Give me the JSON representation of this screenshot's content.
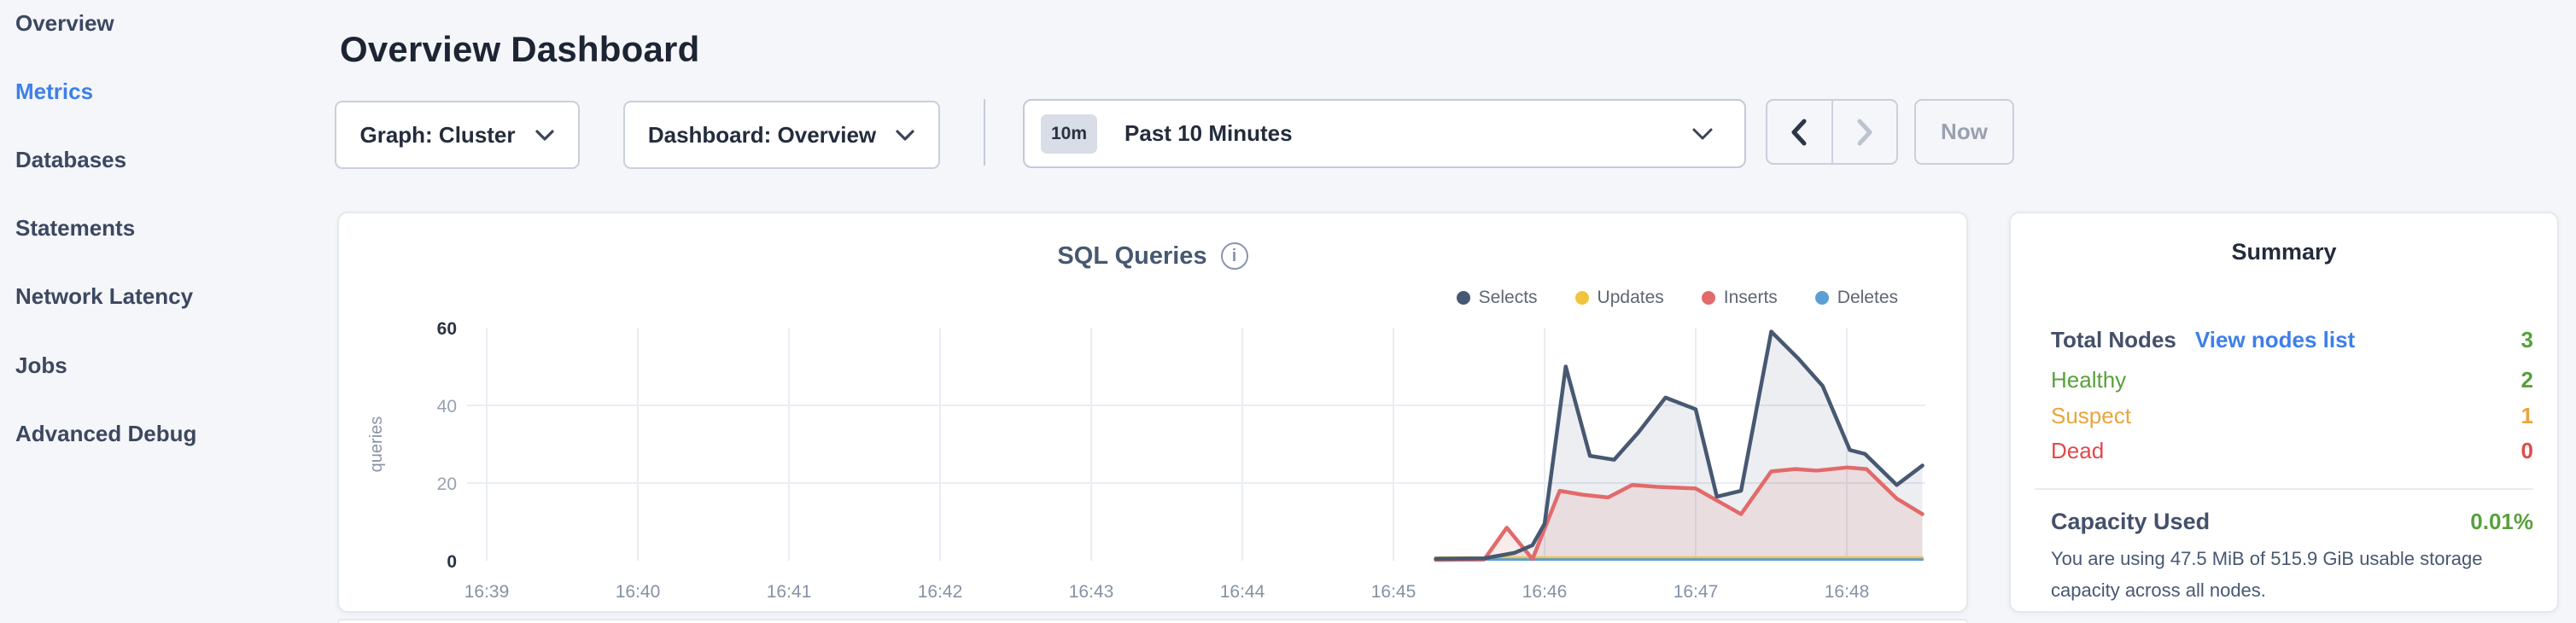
{
  "app": {
    "accent_blue": "#3e7fe8",
    "status_green": "#58a03c",
    "status_orange": "#e9a43f",
    "status_red": "#e2494b"
  },
  "sidebar": {
    "active_item": "Metrics",
    "items": [
      {
        "label": "Overview"
      },
      {
        "label": "Metrics"
      },
      {
        "label": "Databases"
      },
      {
        "label": "Statements"
      },
      {
        "label": "Network Latency"
      },
      {
        "label": "Jobs"
      },
      {
        "label": "Advanced Debug"
      }
    ]
  },
  "header": {
    "title": "Overview Dashboard"
  },
  "toolbar": {
    "graph_dropdown_label": "Graph: Cluster",
    "dashboard_dropdown_label": "Dashboard: Overview",
    "time_badge": "10m",
    "time_label": "Past 10 Minutes",
    "now_label": "Now"
  },
  "chart_data": {
    "type": "area",
    "title": "SQL Queries",
    "xlabel": "",
    "ylabel": "queries",
    "ylim": [
      0,
      60
    ],
    "grid": true,
    "legend_position": "top-right",
    "x_ticks": [
      "16:39",
      "16:40",
      "16:41",
      "16:42",
      "16:43",
      "16:44",
      "16:45",
      "16:46",
      "16:47",
      "16:48"
    ],
    "y_ticks": [
      0,
      20,
      40,
      60
    ],
    "x_unit": "minutes offset from 16:39",
    "legend": [
      {
        "name": "Selects",
        "color": "#475872"
      },
      {
        "name": "Updates",
        "color": "#f0c53d"
      },
      {
        "name": "Inserts",
        "color": "#e26a6a"
      },
      {
        "name": "Deletes",
        "color": "#5b9fd6"
      }
    ],
    "series": [
      {
        "name": "Selects",
        "color": "#475872",
        "fill": "rgba(71,88,114,0.10)",
        "stroke_width": 4.5,
        "points": [
          [
            6.28,
            0.5
          ],
          [
            6.6,
            0.6
          ],
          [
            6.8,
            2
          ],
          [
            6.92,
            4
          ],
          [
            7.0,
            9.5
          ],
          [
            7.14,
            50
          ],
          [
            7.3,
            27
          ],
          [
            7.46,
            26
          ],
          [
            7.62,
            33
          ],
          [
            7.8,
            42
          ],
          [
            8.0,
            39
          ],
          [
            8.14,
            16.5
          ],
          [
            8.3,
            18
          ],
          [
            8.5,
            59
          ],
          [
            8.68,
            52
          ],
          [
            8.84,
            45
          ],
          [
            9.02,
            28.5
          ],
          [
            9.12,
            27.5
          ],
          [
            9.33,
            19.5
          ],
          [
            9.5,
            24.5
          ]
        ]
      },
      {
        "name": "Inserts",
        "color": "#e26a6a",
        "fill": "rgba(226,106,106,0.13)",
        "stroke_width": 4.5,
        "points": [
          [
            6.28,
            0.2
          ],
          [
            6.6,
            0.3
          ],
          [
            6.75,
            8.5
          ],
          [
            6.92,
            0.4
          ],
          [
            7.1,
            18
          ],
          [
            7.25,
            17
          ],
          [
            7.42,
            16.3
          ],
          [
            7.58,
            19.5
          ],
          [
            7.75,
            19
          ],
          [
            8.0,
            18.6
          ],
          [
            8.14,
            15.5
          ],
          [
            8.3,
            12
          ],
          [
            8.5,
            23
          ],
          [
            8.66,
            23.6
          ],
          [
            8.8,
            23.2
          ],
          [
            9.0,
            24
          ],
          [
            9.13,
            23.6
          ],
          [
            9.33,
            16
          ],
          [
            9.5,
            12
          ]
        ]
      },
      {
        "name": "Updates",
        "color": "#f0c53d",
        "fill": "rgba(240,197,61,0.20)",
        "stroke_width": 3,
        "points": [
          [
            6.28,
            0.8
          ],
          [
            9.5,
            0.8
          ]
        ]
      },
      {
        "name": "Deletes",
        "color": "#5b9fd6",
        "fill": "rgba(91,159,214,0.20)",
        "stroke_width": 3,
        "points": [
          [
            6.28,
            0.3
          ],
          [
            9.5,
            0.3
          ]
        ]
      }
    ]
  },
  "summary": {
    "title": "Summary",
    "rows": [
      {
        "label": "Total Nodes",
        "link": "View nodes list",
        "value": "3",
        "color": "#58a03c"
      },
      {
        "label": "Healthy",
        "value": "2",
        "color": "#58a03c"
      },
      {
        "label": "Suspect",
        "value": "1",
        "color": "#e9a43f"
      },
      {
        "label": "Dead",
        "value": "0",
        "color": "#e2494b"
      }
    ],
    "capacity_label": "Capacity Used",
    "capacity_value": "0.01%",
    "capacity_description": "You are using 47.5 MiB of 515.9 GiB usable storage capacity across all nodes."
  }
}
